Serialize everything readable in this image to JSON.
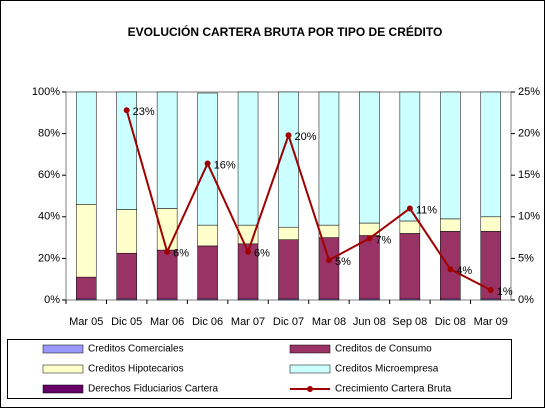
{
  "chart_data": {
    "type": "bar",
    "stacked": true,
    "title": "EVOLUCIÓN CARTERA BRUTA POR TIPO DE CRÉDITO",
    "categories": [
      "Mar 05",
      "Dic 05",
      "Mar 06",
      "Dic 06",
      "Mar 07",
      "Dic 07",
      "Mar 08",
      "Jun 08",
      "Sep 08",
      "Dic 08",
      "Mar 09"
    ],
    "series": [
      {
        "name": "Creditos Comerciales",
        "color": "#9999ff",
        "values": [
          0.5,
          0.5,
          0.5,
          0.5,
          0.5,
          0.5,
          0.5,
          0.5,
          0.5,
          0.5,
          0.5
        ]
      },
      {
        "name": "Creditos de Consumo",
        "color": "#993366",
        "values": [
          10.5,
          22,
          23.5,
          25.5,
          26.5,
          28.5,
          29.5,
          30.5,
          31.5,
          32.5,
          32.5
        ]
      },
      {
        "name": "Creditos Hipotecarios",
        "color": "#ffffcc",
        "values": [
          35,
          21,
          20,
          10,
          9,
          6,
          6,
          6,
          6,
          6,
          7
        ]
      },
      {
        "name": "Creditos Microempresa",
        "color": "#ccffff",
        "values": [
          54,
          56.5,
          56,
          63.5,
          64,
          65,
          64,
          63,
          62,
          61,
          60
        ]
      },
      {
        "name": "Derechos Fiduciarios Cartera",
        "color": "#660066",
        "values": [
          0,
          0,
          0,
          0,
          0,
          0,
          0,
          0,
          0,
          0,
          0
        ]
      },
      {
        "name": "Crecimiento Cartera Bruta",
        "type": "line",
        "axis": "y2",
        "color": "#a00000",
        "values": [
          null,
          22.8,
          5.8,
          16.4,
          5.8,
          19.8,
          4.8,
          7.4,
          11,
          3.7,
          1.2
        ],
        "value_labels": [
          null,
          "23%",
          "6%",
          "16%",
          "6%",
          "20%",
          "5%",
          "7%",
          "11%",
          "4%",
          "1%"
        ]
      }
    ],
    "ylim": [
      0,
      100
    ],
    "yticks": [
      {
        "value": 0,
        "label": "0%"
      },
      {
        "value": 20,
        "label": "20%"
      },
      {
        "value": 40,
        "label": "40%"
      },
      {
        "value": 60,
        "label": "60%"
      },
      {
        "value": 80,
        "label": "80%"
      },
      {
        "value": 100,
        "label": "100%"
      }
    ],
    "y2lim": [
      0,
      25
    ],
    "y2ticks": [
      {
        "value": 0,
        "label": "0%"
      },
      {
        "value": 5,
        "label": "5%"
      },
      {
        "value": 10,
        "label": "10%"
      },
      {
        "value": 15,
        "label": "15%"
      },
      {
        "value": 20,
        "label": "20%"
      },
      {
        "value": 25,
        "label": "25%"
      }
    ],
    "legend": "bottom"
  }
}
